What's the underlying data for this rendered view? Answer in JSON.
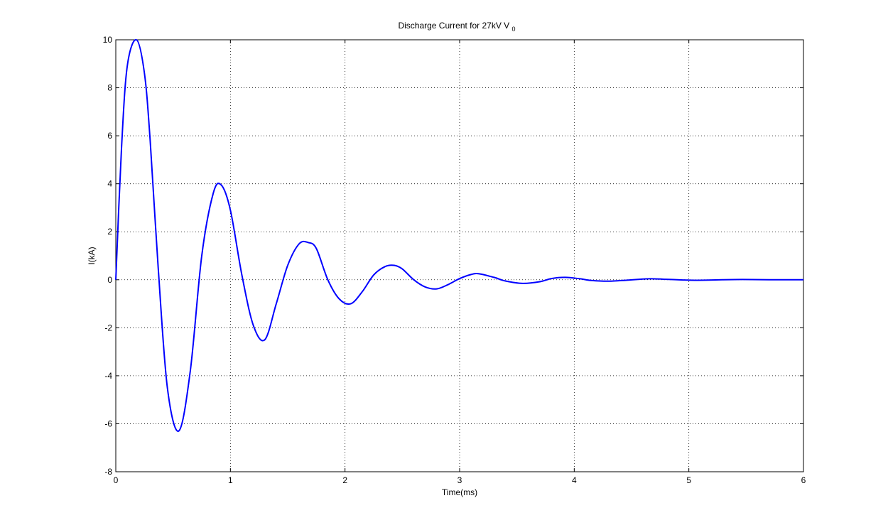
{
  "chart_data": {
    "type": "line",
    "title": "Discharge Current for 27kV V",
    "title_subscript": "0",
    "xlabel": "Time(ms)",
    "ylabel": "I(kA)",
    "xlim": [
      0,
      6
    ],
    "ylim": [
      -8,
      10
    ],
    "xticks": [
      0,
      1,
      2,
      3,
      4,
      5,
      6
    ],
    "xtick_labels": [
      "0",
      "1",
      "2",
      "3",
      "4",
      "5",
      "6"
    ],
    "yticks": [
      -8,
      -6,
      -4,
      -2,
      0,
      2,
      4,
      6,
      8,
      10
    ],
    "ytick_labels": [
      "-8",
      "-6",
      "-4",
      "-2",
      "0",
      "2",
      "4",
      "6",
      "8",
      "10"
    ],
    "grid": true,
    "series": [
      {
        "color": "#0000ff",
        "x": [
          0,
          0.05,
          0.1,
          0.18,
          0.25,
          0.3,
          0.37,
          0.45,
          0.55,
          0.65,
          0.75,
          0.85,
          0.92,
          1.0,
          1.1,
          1.2,
          1.3,
          1.4,
          1.5,
          1.6,
          1.68,
          1.75,
          1.85,
          1.95,
          2.05,
          2.15,
          2.25,
          2.35,
          2.43,
          2.5,
          2.6,
          2.7,
          2.8,
          2.9,
          3.0,
          3.1,
          3.17,
          3.3,
          3.4,
          3.55,
          3.7,
          3.8,
          3.92,
          4.05,
          4.15,
          4.3,
          4.45,
          4.6,
          4.67,
          4.8,
          4.95,
          5.05,
          5.2,
          5.4,
          5.55,
          5.7,
          5.85,
          6.0
        ],
        "y": [
          0,
          5.5,
          8.9,
          10.0,
          8.6,
          5.8,
          0.5,
          -4.5,
          -6.3,
          -3.8,
          1.0,
          3.6,
          3.95,
          2.9,
          0.2,
          -1.9,
          -2.5,
          -1.0,
          0.6,
          1.5,
          1.55,
          1.3,
          0.0,
          -0.8,
          -1.0,
          -0.5,
          0.2,
          0.55,
          0.6,
          0.45,
          0.0,
          -0.3,
          -0.38,
          -0.2,
          0.05,
          0.22,
          0.25,
          0.1,
          -0.05,
          -0.15,
          -0.08,
          0.05,
          0.1,
          0.04,
          -0.03,
          -0.06,
          -0.02,
          0.03,
          0.04,
          0.02,
          -0.01,
          -0.02,
          -0.01,
          0.01,
          0.01,
          0.0,
          0.0,
          0.0
        ]
      }
    ]
  }
}
